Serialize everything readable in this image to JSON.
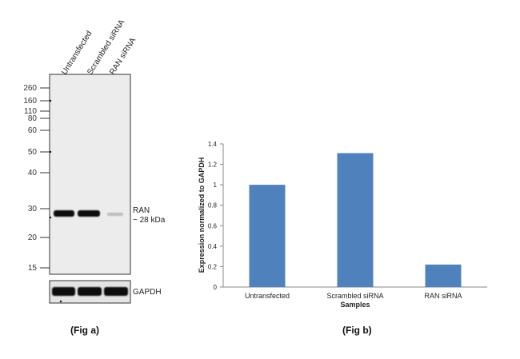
{
  "blot": {
    "lane_labels": [
      "Untransfected",
      "Scrambled siRNA",
      "RAN siRNA"
    ],
    "markers": [
      "260",
      "160",
      "110",
      "80",
      "60",
      "50",
      "40",
      "30",
      "20",
      "15"
    ],
    "band_label_line1": "RAN",
    "band_label_line2": "~ 28 kDa",
    "loading_control_label": "GAPDH",
    "caption": "(Fig a)"
  },
  "chart_data": {
    "type": "bar",
    "categories": [
      "Untransfected",
      "Scrambled siRNA",
      "RAN siRNA"
    ],
    "values": [
      1.0,
      1.31,
      0.22
    ],
    "title": "",
    "xlabel": "Samples",
    "ylabel": "Expression  normalized to GAPDH",
    "ylim": [
      0,
      1.4
    ],
    "yticks": [
      "0",
      "0.2",
      "0.4",
      "0.6",
      "0.8",
      "1",
      "1.2",
      "1.4"
    ],
    "bar_color": "#4f81bd",
    "grid": false,
    "caption": "(Fig b)"
  }
}
